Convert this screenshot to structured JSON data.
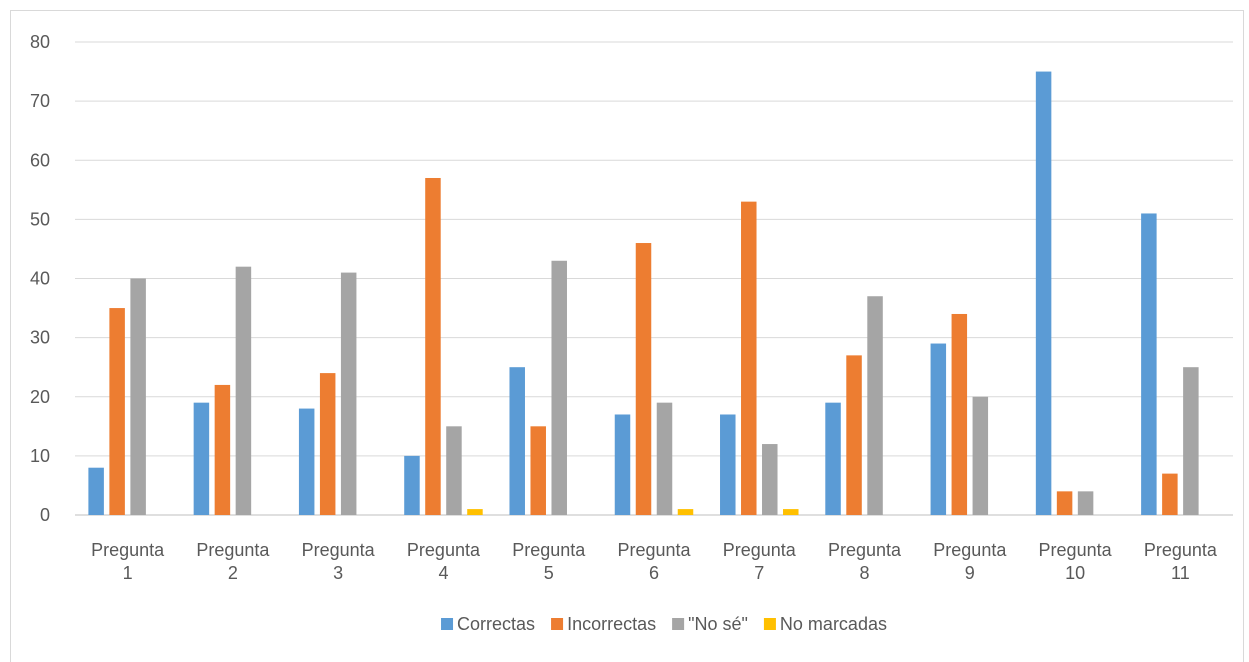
{
  "chart_data": {
    "type": "bar",
    "title": "",
    "xlabel": "",
    "ylabel": "",
    "ylim": [
      0,
      80
    ],
    "yticks": [
      0,
      10,
      20,
      30,
      40,
      50,
      60,
      70,
      80
    ],
    "grid": true,
    "legend_position": "bottom",
    "categories": [
      [
        "Pregunta",
        "1"
      ],
      [
        "Pregunta",
        "2"
      ],
      [
        "Pregunta",
        "3"
      ],
      [
        "Pregunta",
        "4"
      ],
      [
        "Pregunta",
        "5"
      ],
      [
        "Pregunta",
        "6"
      ],
      [
        "Pregunta",
        "7"
      ],
      [
        "Pregunta",
        "8"
      ],
      [
        "Pregunta",
        "9"
      ],
      [
        "Pregunta",
        "10"
      ],
      [
        "Pregunta",
        "11"
      ]
    ],
    "series": [
      {
        "name": "Correctas",
        "color": "#5b9bd5",
        "values": [
          8,
          19,
          18,
          10,
          25,
          17,
          17,
          19,
          29,
          75,
          51
        ]
      },
      {
        "name": "Incorrectas",
        "color": "#ed7d31",
        "values": [
          35,
          22,
          24,
          57,
          15,
          46,
          53,
          27,
          34,
          4,
          7
        ]
      },
      {
        "name": "\"No sé\"",
        "color": "#a5a5a5",
        "values": [
          40,
          42,
          41,
          15,
          43,
          19,
          12,
          37,
          20,
          4,
          25
        ]
      },
      {
        "name": "No marcadas",
        "color": "#ffc000",
        "values": [
          0,
          0,
          0,
          1,
          0,
          1,
          1,
          0,
          0,
          0,
          0
        ]
      }
    ]
  }
}
